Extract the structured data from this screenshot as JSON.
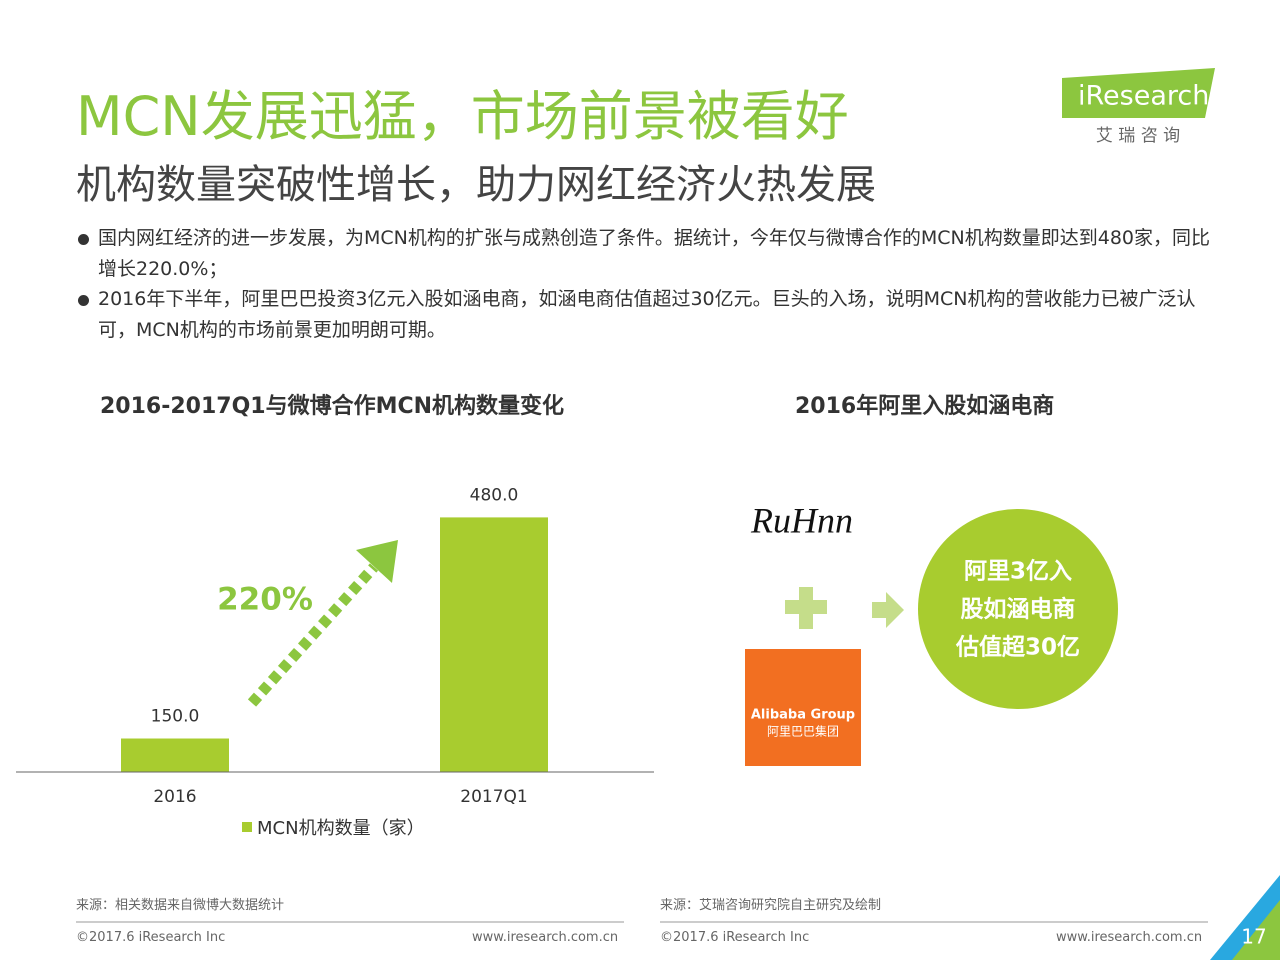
{
  "header": {
    "title": "MCN发展迅猛，市场前景被看好",
    "subtitle": "机构数量突破性增长，助力网红经济火热发展"
  },
  "logo": {
    "brand": "iResearch",
    "name": "艾 瑞 咨 询"
  },
  "bullets": [
    "国内网红经济的进一步发展，为MCN机构的扩张与成熟创造了条件。据统计，今年仅与微博合作的MCN机构数量即达到480家，同比增长220.0%；",
    "2016年下半年，阿里巴巴投资3亿元入股如涵电商，如涵电商估值超过30亿元。巨头的入场，说明MCN机构的营收能力已被广泛认可，MCN机构的市场前景更加明朗可期。"
  ],
  "chart_data": {
    "type": "bar",
    "title": "2016-2017Q1与微博合作MCN机构数量变化",
    "categories": [
      "2016",
      "2017Q1"
    ],
    "series": [
      {
        "name": "MCN机构数量（家）",
        "color": "#a8cc2f",
        "values": [
          150,
          480
        ],
        "value_labels": [
          "150.0",
          "480.0"
        ]
      }
    ],
    "ylim": [
      100,
      500
    ],
    "annotation": "220%"
  },
  "right_panel": {
    "title": "2016年阿里入股如涵电商",
    "ruhnn_logo": "RuHnn",
    "alibaba": [
      "Alibaba Group",
      "阿里巴巴集团"
    ],
    "circle_lines": [
      "阿里3亿入",
      "股如涵电商",
      "估值超30亿"
    ]
  },
  "footer": {
    "left": {
      "source": "来源：相关数据来自微博大数据统计",
      "copyright": "©2017.6 iResearch Inc",
      "url": "www.iresearch.com.cn"
    },
    "right": {
      "source": "来源：艾瑞咨询研究院自主研究及绘制",
      "copyright": "©2017.6 iResearch Inc",
      "url": "www.iresearch.com.cn"
    },
    "page": "17"
  }
}
